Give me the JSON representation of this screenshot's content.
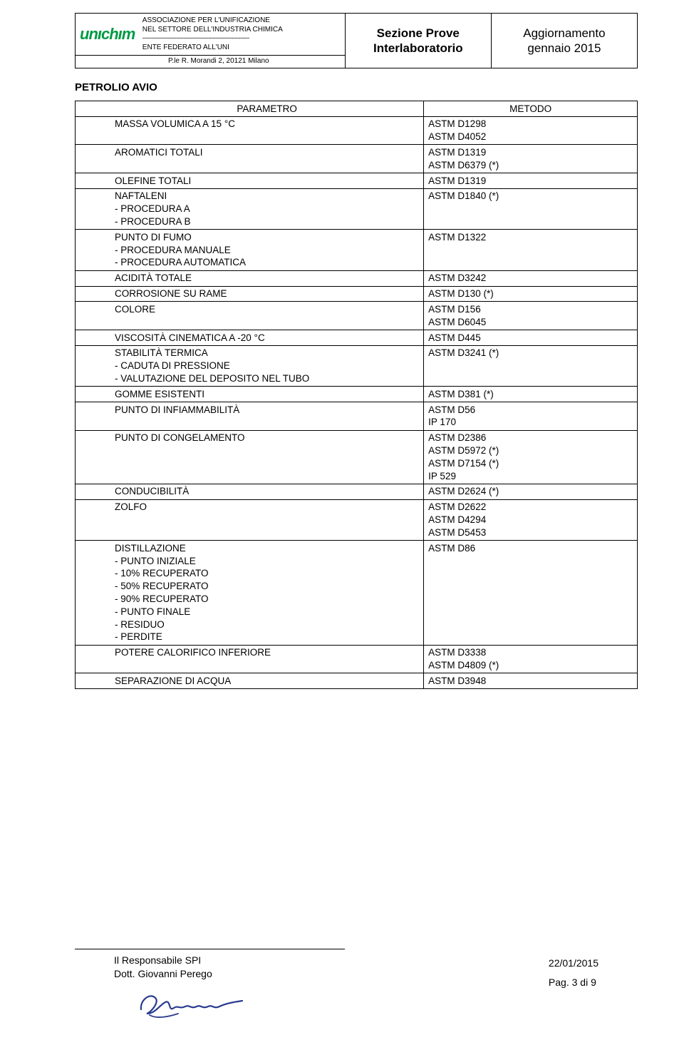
{
  "header": {
    "org_line1": "ASSOCIAZIONE PER L'UNIFICAZIONE",
    "org_line2": "NEL SETTORE DELL'INDUSTRIA CHIMICA",
    "dashes": "------------------------------------------------------------",
    "org_line3": "ENTE FEDERATO ALL'UNI",
    "address": "P.le R. Morandi 2, 20121 Milano",
    "mid_line1": "Sezione Prove",
    "mid_line2": "Interlaboratorio",
    "right_line1": "Aggiornamento",
    "right_line2": "gennaio 2015",
    "logo_text": "unıchım"
  },
  "section_title": "PETROLIO AVIO",
  "table": {
    "head_param": "PARAMETRO",
    "head_method": "METODO",
    "rows": [
      {
        "param": "MASSA VOLUMICA A 15 °C",
        "methods": [
          "ASTM D1298",
          "ASTM D4052"
        ]
      },
      {
        "param": "AROMATICI TOTALI",
        "methods": [
          "ASTM D1319",
          "ASTM D6379 (*)"
        ]
      },
      {
        "param": "OLEFINE TOTALI",
        "methods": [
          "ASTM D1319"
        ]
      },
      {
        "param": "NAFTALENI",
        "sub": [
          "PROCEDURA A",
          "PROCEDURA B"
        ],
        "methods": [
          "ASTM D1840 (*)"
        ]
      },
      {
        "param": "PUNTO DI FUMO",
        "sub": [
          "PROCEDURA MANUALE",
          "PROCEDURA AUTOMATICA"
        ],
        "methods": [
          "ASTM D1322"
        ]
      },
      {
        "param": "ACIDITÀ TOTALE",
        "methods": [
          "ASTM D3242"
        ]
      },
      {
        "param": "CORROSIONE SU RAME",
        "methods": [
          "ASTM D130 (*)"
        ]
      },
      {
        "param": "COLORE",
        "methods": [
          "ASTM D156",
          "ASTM D6045"
        ]
      },
      {
        "param": "VISCOSITÀ CINEMATICA A -20 °C",
        "methods": [
          "ASTM D445"
        ]
      },
      {
        "param": "STABILITÀ TERMICA",
        "sub": [
          "CADUTA DI PRESSIONE",
          "VALUTAZIONE DEL DEPOSITO NEL TUBO"
        ],
        "methods": [
          "ASTM D3241 (*)"
        ]
      },
      {
        "param": "GOMME ESISTENTI",
        "methods": [
          "ASTM D381 (*)"
        ]
      },
      {
        "param": "PUNTO DI INFIAMMABILITÀ",
        "methods": [
          "ASTM D56",
          "IP 170"
        ]
      },
      {
        "param": "PUNTO DI CONGELAMENTO",
        "methods": [
          "ASTM D2386",
          "ASTM D5972 (*)",
          "ASTM D7154 (*)",
          "IP 529"
        ]
      },
      {
        "param": "CONDUCIBILITÀ",
        "methods": [
          "ASTM D2624 (*)"
        ]
      },
      {
        "param": "ZOLFO",
        "methods": [
          "ASTM D2622",
          "ASTM D4294",
          "ASTM D5453"
        ]
      },
      {
        "param": "DISTILLAZIONE",
        "sub": [
          "PUNTO INIZIALE",
          "10% RECUPERATO",
          "50% RECUPERATO",
          "90% RECUPERATO",
          "PUNTO FINALE",
          "RESIDUO",
          "PERDITE"
        ],
        "methods": [
          "ASTM D86"
        ]
      },
      {
        "param": "POTERE CALORIFICO INFERIORE",
        "methods": [
          "ASTM D3338",
          "ASTM D4809 (*)"
        ]
      },
      {
        "param": "SEPARAZIONE DI ACQUA",
        "methods": [
          "ASTM D3948"
        ]
      }
    ]
  },
  "footer": {
    "resp_label": "Il Responsabile SPI",
    "resp_name": "Dott. Giovanni Perego",
    "date": "22/01/2015",
    "page": "Pag. 3 di 9"
  },
  "colors": {
    "logo_green": "#009a44",
    "sig_blue": "#2a3b8f"
  }
}
